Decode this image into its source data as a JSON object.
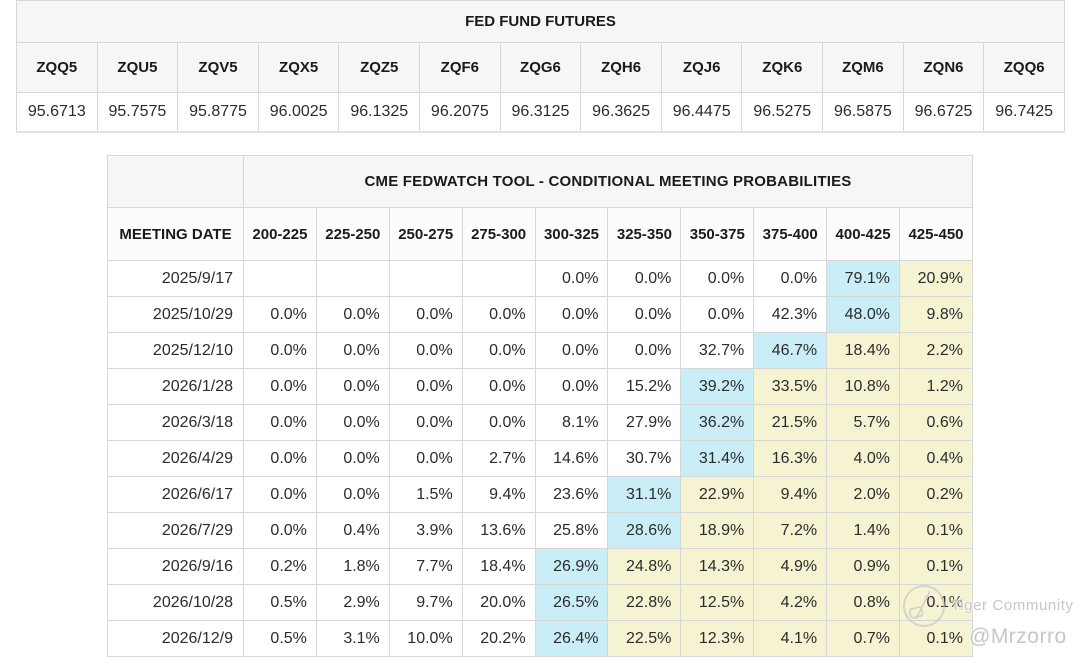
{
  "colors": {
    "highlight_cyan": "#c9eef8",
    "highlight_yellow": "#f6f3d2",
    "panel_bg": "#f6f6f6",
    "border": "#d7d7d7",
    "watermark": "#c6c6c6"
  },
  "watermark": {
    "logo": "tiger-logo",
    "line1": "Tiger Community",
    "line2": "@Mrzorro"
  },
  "chart_data": [
    {
      "type": "table",
      "title": "FED FUND FUTURES",
      "columns": [
        "ZQQ5",
        "ZQU5",
        "ZQV5",
        "ZQX5",
        "ZQZ5",
        "ZQF6",
        "ZQG6",
        "ZQH6",
        "ZQJ6",
        "ZQK6",
        "ZQM6",
        "ZQN6",
        "ZQQ6"
      ],
      "rows": [
        [
          "95.6713",
          "95.7575",
          "95.8775",
          "96.0025",
          "96.1325",
          "96.2075",
          "96.3125",
          "96.3625",
          "96.4475",
          "96.5275",
          "96.5875",
          "96.6725",
          "96.7425"
        ]
      ]
    },
    {
      "type": "table",
      "title": "CME FEDWATCH TOOL - CONDITIONAL MEETING PROBABILITIES",
      "date_header": "MEETING DATE",
      "range_headers": [
        "200-225",
        "225-250",
        "250-275",
        "275-300",
        "300-325",
        "325-350",
        "350-375",
        "375-400",
        "400-425",
        "425-450"
      ],
      "rows": [
        {
          "date": "2025/9/17",
          "values": [
            "",
            "",
            "",
            "",
            "0.0%",
            "0.0%",
            "0.0%",
            "0.0%",
            "79.1%",
            "20.9%"
          ],
          "styles": [
            "",
            "",
            "",
            "",
            "",
            "",
            "",
            "",
            "cyan",
            "yellow"
          ]
        },
        {
          "date": "2025/10/29",
          "values": [
            "0.0%",
            "0.0%",
            "0.0%",
            "0.0%",
            "0.0%",
            "0.0%",
            "0.0%",
            "42.3%",
            "48.0%",
            "9.8%"
          ],
          "styles": [
            "",
            "",
            "",
            "",
            "",
            "",
            "",
            "",
            "cyan",
            "yellow"
          ]
        },
        {
          "date": "2025/12/10",
          "values": [
            "0.0%",
            "0.0%",
            "0.0%",
            "0.0%",
            "0.0%",
            "0.0%",
            "32.7%",
            "46.7%",
            "18.4%",
            "2.2%"
          ],
          "styles": [
            "",
            "",
            "",
            "",
            "",
            "",
            "",
            "cyan",
            "yellow",
            "yellow"
          ]
        },
        {
          "date": "2026/1/28",
          "values": [
            "0.0%",
            "0.0%",
            "0.0%",
            "0.0%",
            "0.0%",
            "15.2%",
            "39.2%",
            "33.5%",
            "10.8%",
            "1.2%"
          ],
          "styles": [
            "",
            "",
            "",
            "",
            "",
            "",
            "cyan",
            "yellow",
            "yellow",
            "yellow"
          ]
        },
        {
          "date": "2026/3/18",
          "values": [
            "0.0%",
            "0.0%",
            "0.0%",
            "0.0%",
            "8.1%",
            "27.9%",
            "36.2%",
            "21.5%",
            "5.7%",
            "0.6%"
          ],
          "styles": [
            "",
            "",
            "",
            "",
            "",
            "",
            "cyan",
            "yellow",
            "yellow",
            "yellow"
          ]
        },
        {
          "date": "2026/4/29",
          "values": [
            "0.0%",
            "0.0%",
            "0.0%",
            "2.7%",
            "14.6%",
            "30.7%",
            "31.4%",
            "16.3%",
            "4.0%",
            "0.4%"
          ],
          "styles": [
            "",
            "",
            "",
            "",
            "",
            "",
            "cyan",
            "yellow",
            "yellow",
            "yellow"
          ]
        },
        {
          "date": "2026/6/17",
          "values": [
            "0.0%",
            "0.0%",
            "1.5%",
            "9.4%",
            "23.6%",
            "31.1%",
            "22.9%",
            "9.4%",
            "2.0%",
            "0.2%"
          ],
          "styles": [
            "",
            "",
            "",
            "",
            "",
            "cyan",
            "yellow",
            "yellow",
            "yellow",
            "yellow"
          ]
        },
        {
          "date": "2026/7/29",
          "values": [
            "0.0%",
            "0.4%",
            "3.9%",
            "13.6%",
            "25.8%",
            "28.6%",
            "18.9%",
            "7.2%",
            "1.4%",
            "0.1%"
          ],
          "styles": [
            "",
            "",
            "",
            "",
            "",
            "cyan",
            "yellow",
            "yellow",
            "yellow",
            "yellow"
          ]
        },
        {
          "date": "2026/9/16",
          "values": [
            "0.2%",
            "1.8%",
            "7.7%",
            "18.4%",
            "26.9%",
            "24.8%",
            "14.3%",
            "4.9%",
            "0.9%",
            "0.1%"
          ],
          "styles": [
            "",
            "",
            "",
            "",
            "cyan",
            "yellow",
            "yellow",
            "yellow",
            "yellow",
            "yellow"
          ]
        },
        {
          "date": "2026/10/28",
          "values": [
            "0.5%",
            "2.9%",
            "9.7%",
            "20.0%",
            "26.5%",
            "22.8%",
            "12.5%",
            "4.2%",
            "0.8%",
            "0.1%"
          ],
          "styles": [
            "",
            "",
            "",
            "",
            "cyan",
            "yellow",
            "yellow",
            "yellow",
            "yellow",
            "yellow"
          ]
        },
        {
          "date": "2026/12/9",
          "values": [
            "0.5%",
            "3.1%",
            "10.0%",
            "20.2%",
            "26.4%",
            "22.5%",
            "12.3%",
            "4.1%",
            "0.7%",
            "0.1%"
          ],
          "styles": [
            "",
            "",
            "",
            "",
            "cyan",
            "yellow",
            "yellow",
            "yellow",
            "yellow",
            "yellow"
          ]
        }
      ]
    }
  ]
}
